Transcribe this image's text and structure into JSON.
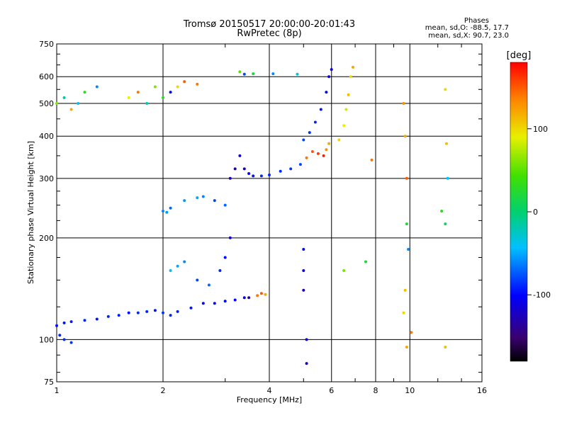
{
  "header": {
    "title_line1": "Tromsø 20150517 20:00:00-20:01:43",
    "title_line2": "RwPretec (8p)",
    "stats_title": "Phases",
    "stats_o": "mean, sd,O: -88.5, 17.7",
    "stats_x": "mean, sd,X:  90.7, 23.0"
  },
  "colorbar": {
    "label": "[deg]",
    "ticks": [
      "100",
      "0",
      "-100"
    ],
    "tick_values": [
      100,
      0,
      -100
    ],
    "range": [
      -180,
      180
    ]
  },
  "chart_data": {
    "type": "scatter",
    "xlabel": "Frequency [MHz]",
    "ylabel": "Stationary phase Virtual Height [km]",
    "xscale": "log",
    "yscale": "log",
    "xlim": [
      1,
      16
    ],
    "ylim": [
      75,
      750
    ],
    "x_ticks": [
      "1",
      "2",
      "4",
      "6",
      "8",
      "10",
      "16"
    ],
    "x_tick_values": [
      1,
      2,
      4,
      6,
      8,
      10,
      16
    ],
    "y_ticks": [
      "750",
      "600",
      "500",
      "400",
      "300",
      "200",
      "100",
      "75"
    ],
    "y_tick_values": [
      750,
      600,
      500,
      400,
      300,
      200,
      100,
      75
    ],
    "grid": true,
    "series": [
      {
        "points": [
          [
            1.0,
            110,
            -95
          ],
          [
            1.05,
            112,
            -95
          ],
          [
            1.1,
            113,
            -92
          ],
          [
            1.2,
            114,
            -90
          ],
          [
            1.3,
            115,
            -95
          ],
          [
            1.4,
            117,
            -90
          ],
          [
            1.5,
            118,
            -92
          ],
          [
            1.6,
            120,
            -95
          ],
          [
            1.7,
            120,
            -88
          ],
          [
            1.8,
            121,
            -90
          ],
          [
            1.9,
            122,
            -95
          ],
          [
            2.0,
            120,
            -85
          ],
          [
            2.1,
            118,
            -90
          ],
          [
            2.2,
            121,
            -92
          ],
          [
            2.4,
            124,
            -95
          ],
          [
            2.6,
            128,
            -100
          ],
          [
            2.8,
            128,
            -98
          ],
          [
            3.0,
            130,
            -100
          ],
          [
            3.2,
            131,
            -105
          ],
          [
            3.4,
            133,
            -100
          ],
          [
            1.02,
            103,
            -90
          ],
          [
            1.05,
            100,
            -88
          ],
          [
            1.1,
            98,
            -85
          ],
          [
            1.0,
            500,
            60
          ],
          [
            1.05,
            520,
            -20
          ],
          [
            1.1,
            480,
            120
          ],
          [
            1.15,
            500,
            -40
          ],
          [
            1.2,
            540,
            30
          ],
          [
            1.3,
            560,
            -60
          ],
          [
            1.6,
            520,
            90
          ],
          [
            1.7,
            540,
            140
          ],
          [
            1.8,
            500,
            -20
          ],
          [
            1.9,
            560,
            60
          ],
          [
            2.0,
            520,
            30
          ],
          [
            2.1,
            540,
            -100
          ],
          [
            2.2,
            560,
            100
          ],
          [
            2.3,
            580,
            150
          ],
          [
            2.5,
            570,
            140
          ],
          [
            2.0,
            240,
            -60
          ],
          [
            2.05,
            238,
            -55
          ],
          [
            2.1,
            245,
            -70
          ],
          [
            2.3,
            258,
            -55
          ],
          [
            2.5,
            263,
            -50
          ],
          [
            2.6,
            265,
            -60
          ],
          [
            2.8,
            258,
            -80
          ],
          [
            3.0,
            250,
            -70
          ],
          [
            2.1,
            160,
            -40
          ],
          [
            2.2,
            165,
            -50
          ],
          [
            2.3,
            170,
            -60
          ],
          [
            2.5,
            150,
            -80
          ],
          [
            2.7,
            145,
            -70
          ],
          [
            2.9,
            160,
            -90
          ],
          [
            3.0,
            175,
            -100
          ],
          [
            3.1,
            200,
            -110
          ],
          [
            3.1,
            300,
            -120
          ],
          [
            3.2,
            320,
            -130
          ],
          [
            3.3,
            350,
            -110
          ],
          [
            3.4,
            320,
            -120
          ],
          [
            3.5,
            310,
            -100
          ],
          [
            3.6,
            305,
            -95
          ],
          [
            3.8,
            305,
            -90
          ],
          [
            4.0,
            307,
            -90
          ],
          [
            4.3,
            315,
            -88
          ],
          [
            4.6,
            320,
            -85
          ],
          [
            4.9,
            330,
            -80
          ],
          [
            5.1,
            345,
            140
          ],
          [
            5.3,
            360,
            150
          ],
          [
            5.5,
            355,
            160
          ],
          [
            5.7,
            350,
            170
          ],
          [
            5.8,
            365,
            130
          ],
          [
            5.9,
            380,
            120
          ],
          [
            5.0,
            390,
            -80
          ],
          [
            5.2,
            410,
            -85
          ],
          [
            5.4,
            440,
            -90
          ],
          [
            5.6,
            480,
            -95
          ],
          [
            5.8,
            540,
            -100
          ],
          [
            5.9,
            600,
            -110
          ],
          [
            6.0,
            630,
            -115
          ],
          [
            6.3,
            390,
            100
          ],
          [
            6.5,
            430,
            90
          ],
          [
            6.6,
            480,
            80
          ],
          [
            6.7,
            530,
            110
          ],
          [
            6.8,
            600,
            100
          ],
          [
            6.9,
            640,
            120
          ],
          [
            3.7,
            135,
            140
          ],
          [
            3.8,
            137,
            150
          ],
          [
            3.9,
            136,
            120
          ],
          [
            3.5,
            133,
            -130
          ],
          [
            3.3,
            620,
            50
          ],
          [
            3.4,
            610,
            -80
          ],
          [
            3.6,
            612,
            20
          ],
          [
            4.1,
            612,
            -60
          ],
          [
            4.8,
            610,
            -30
          ],
          [
            5.0,
            185,
            -100
          ],
          [
            5.0,
            160,
            -110
          ],
          [
            5.0,
            140,
            -120
          ],
          [
            5.1,
            100,
            -110
          ],
          [
            5.1,
            85,
            -120
          ],
          [
            6.5,
            160,
            60
          ],
          [
            7.5,
            170,
            20
          ],
          [
            7.8,
            340,
            140
          ],
          [
            9.6,
            500,
            130
          ],
          [
            9.7,
            400,
            120
          ],
          [
            9.8,
            300,
            150
          ],
          [
            9.8,
            220,
            20
          ],
          [
            9.9,
            185,
            -60
          ],
          [
            9.7,
            140,
            110
          ],
          [
            9.6,
            120,
            100
          ],
          [
            9.8,
            95,
            120
          ],
          [
            10.1,
            105,
            140
          ],
          [
            12.6,
            550,
            100
          ],
          [
            12.7,
            380,
            110
          ],
          [
            12.8,
            300,
            -40
          ],
          [
            12.3,
            240,
            30
          ],
          [
            12.6,
            220,
            10
          ],
          [
            12.6,
            95,
            110
          ]
        ]
      }
    ]
  }
}
